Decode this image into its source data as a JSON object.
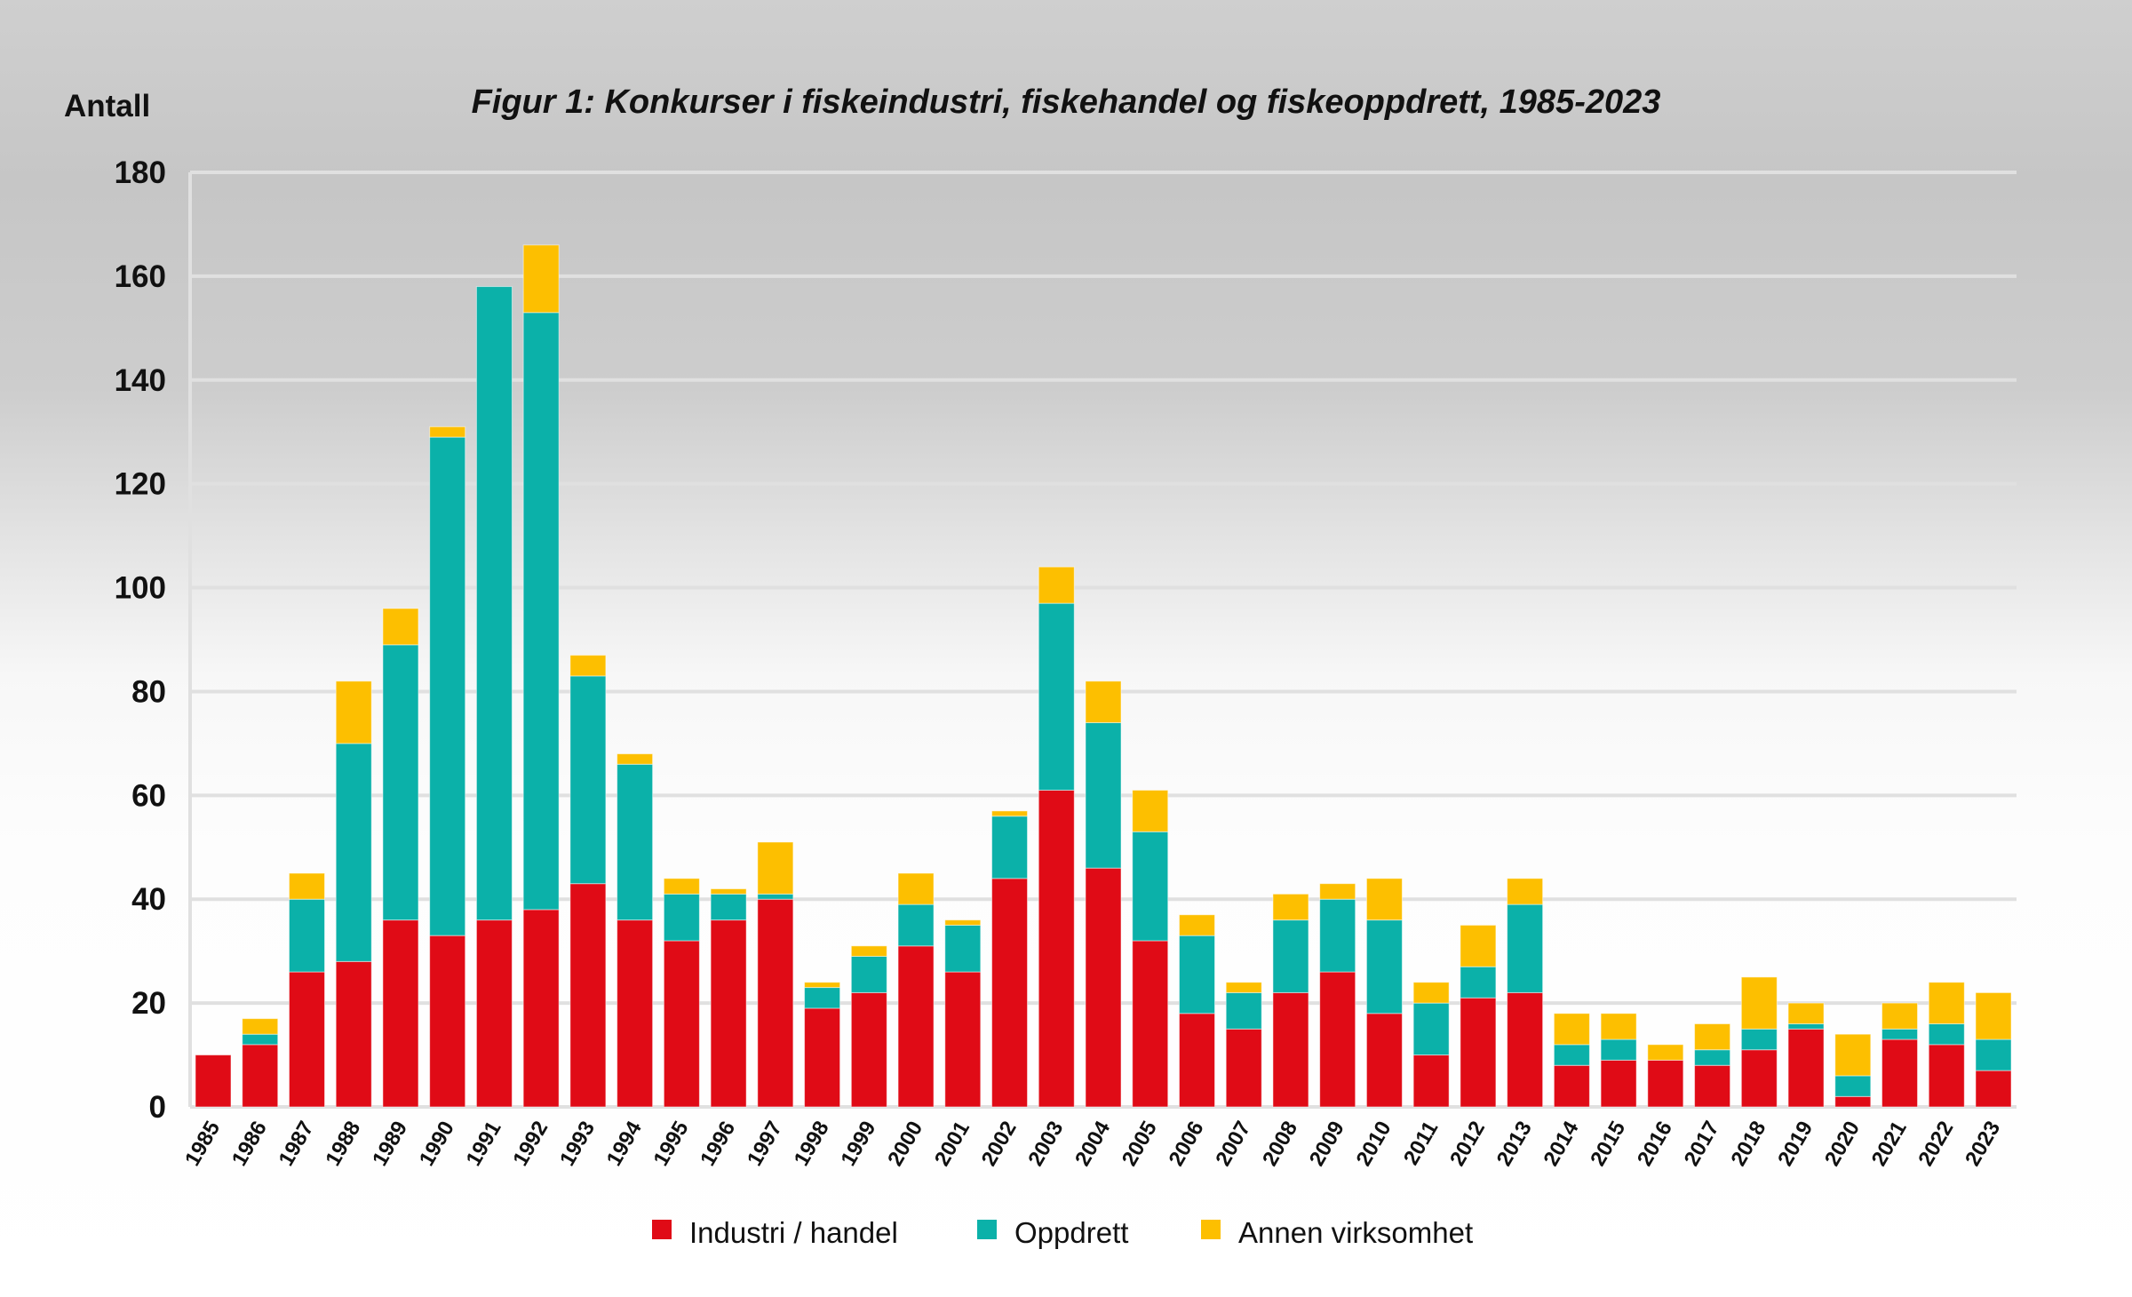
{
  "chart_data": {
    "type": "bar",
    "stacked": true,
    "title": "Figur 1: Konkurser i fiskeindustri, fiskehandel og fiskeoppdrett, 1985-2023",
    "ylabel": "Antall",
    "xlabel": "",
    "ylim": [
      0,
      180
    ],
    "yticks": [
      0,
      20,
      40,
      60,
      80,
      100,
      120,
      140,
      160,
      180
    ],
    "grid": true,
    "legend_position": "bottom",
    "categories": [
      "1985",
      "1986",
      "1987",
      "1988",
      "1989",
      "1990",
      "1991",
      "1992",
      "1993",
      "1994",
      "1995",
      "1996",
      "1997",
      "1998",
      "1999",
      "2000",
      "2001",
      "2002",
      "2003",
      "2004",
      "2005",
      "2006",
      "2007",
      "2008",
      "2009",
      "2010",
      "2011",
      "2012",
      "2013",
      "2014",
      "2015",
      "2016",
      "2017",
      "2018",
      "2019",
      "2020",
      "2021",
      "2022",
      "2023"
    ],
    "series": [
      {
        "name": "Industri / handel",
        "color": "#e00b16",
        "values": [
          10,
          12,
          26,
          28,
          36,
          33,
          36,
          38,
          43,
          36,
          32,
          36,
          40,
          19,
          22,
          31,
          26,
          44,
          61,
          46,
          32,
          18,
          15,
          22,
          26,
          18,
          10,
          21,
          22,
          8,
          9,
          9,
          8,
          11,
          15,
          2,
          13,
          12,
          7
        ]
      },
      {
        "name": "Oppdrett",
        "color": "#0bb1a9",
        "values": [
          0,
          2,
          14,
          42,
          53,
          96,
          122,
          115,
          40,
          30,
          9,
          5,
          1,
          4,
          7,
          8,
          9,
          12,
          36,
          28,
          21,
          15,
          7,
          14,
          14,
          18,
          10,
          6,
          17,
          4,
          4,
          0,
          3,
          4,
          1,
          4,
          2,
          4,
          6
        ]
      },
      {
        "name": "Annen virksomhet",
        "color": "#fdbf00",
        "values": [
          0,
          3,
          5,
          12,
          7,
          2,
          0,
          13,
          4,
          2,
          3,
          1,
          10,
          1,
          2,
          6,
          1,
          1,
          7,
          8,
          8,
          4,
          2,
          5,
          3,
          8,
          4,
          8,
          5,
          6,
          5,
          3,
          5,
          10,
          4,
          8,
          5,
          8,
          9
        ]
      }
    ]
  }
}
